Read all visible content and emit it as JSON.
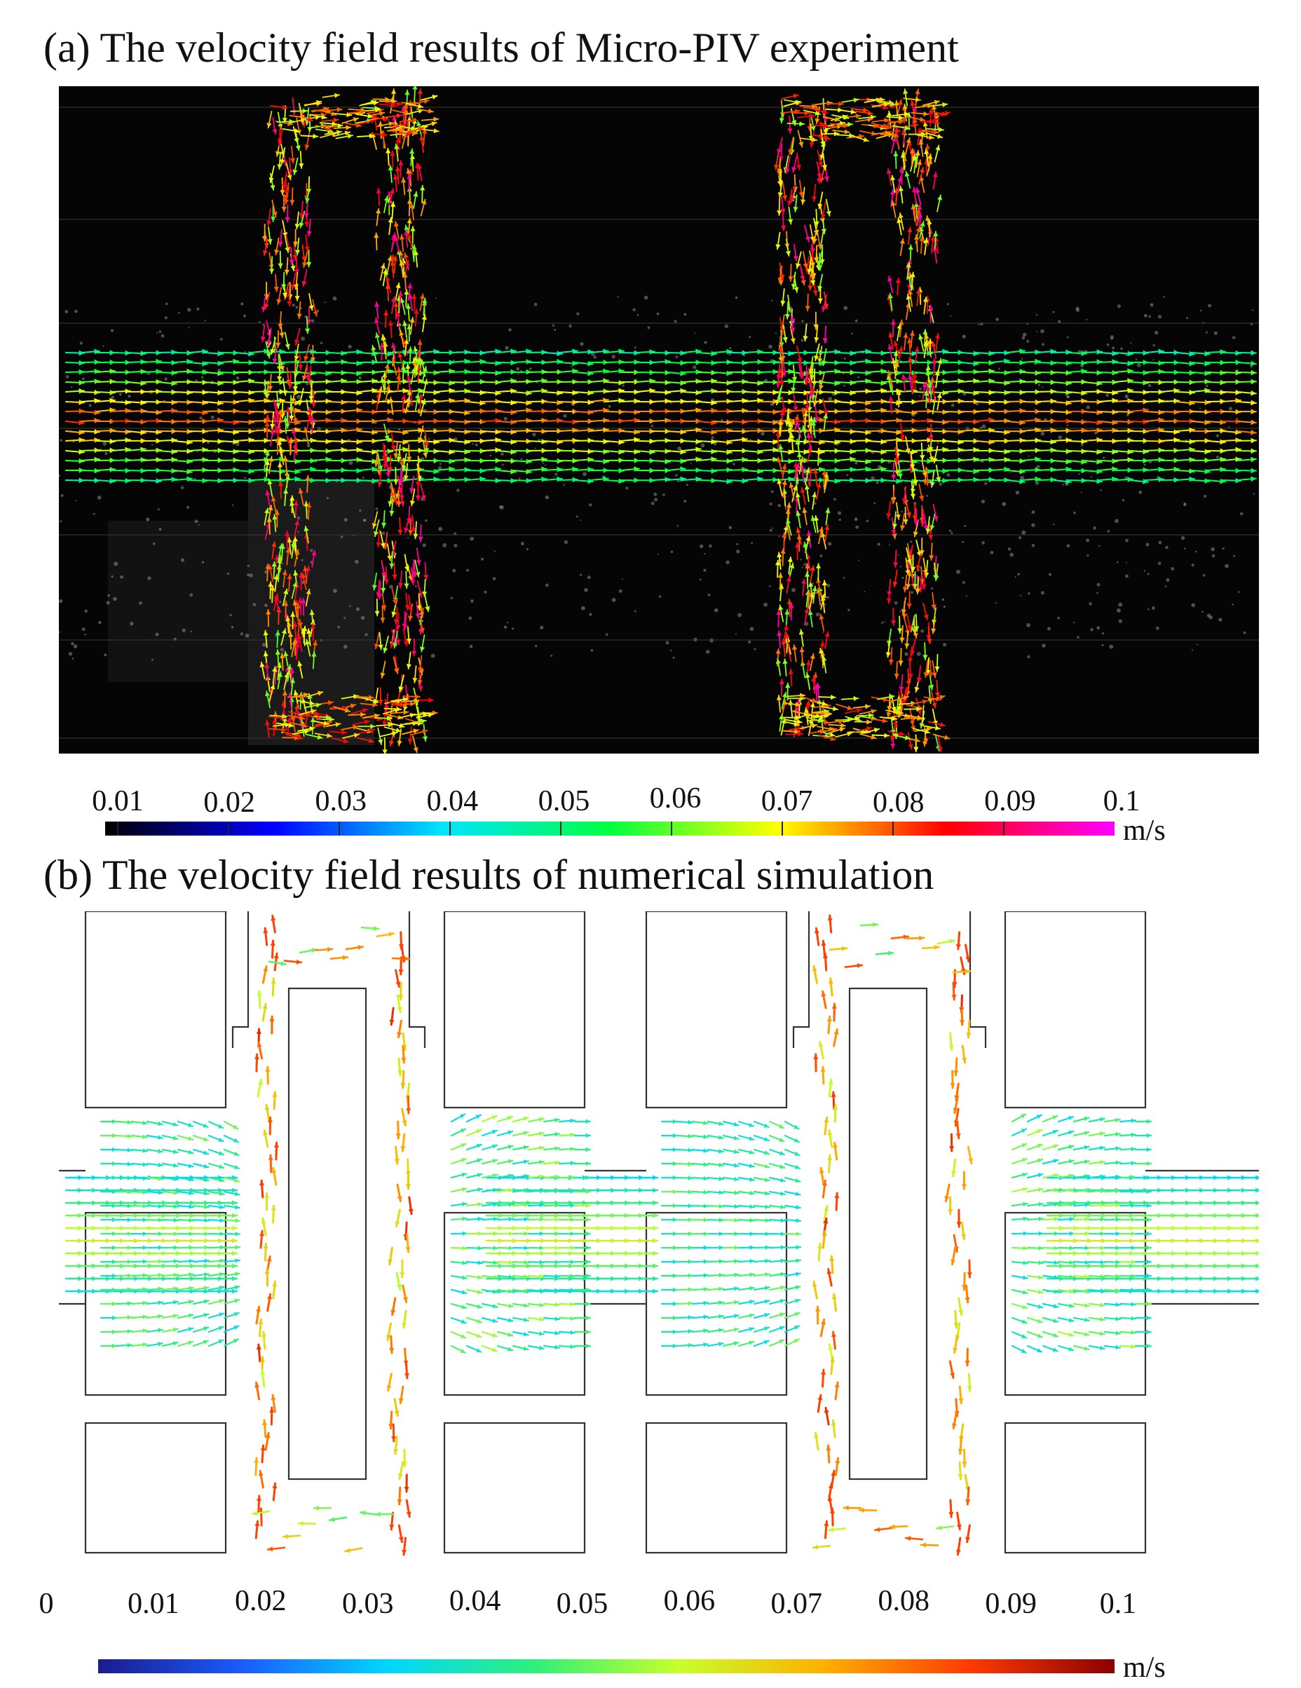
{
  "panel_a": {
    "title": "(a) The velocity field results of Micro-PIV experiment",
    "colorbar": {
      "ticks": [
        "0.01",
        "0.02",
        "0.03",
        "0.04",
        "0.05",
        "0.06",
        "0.07",
        "0.08",
        "0.09",
        "0.1"
      ],
      "unit": "m/s",
      "colors": [
        "#000000",
        "#0000ff",
        "#00e5ff",
        "#00ff40",
        "#ffff00",
        "#ff0000",
        "#ff00ff"
      ]
    }
  },
  "panel_b": {
    "title": "(b) The velocity field results of numerical simulation",
    "colorbar": {
      "ticks": [
        "0",
        "0.01",
        "0.02",
        "0.03",
        "0.04",
        "0.05",
        "0.06",
        "0.07",
        "0.08",
        "0.09",
        "0.1"
      ],
      "unit": "m/s",
      "colors": [
        "#1b1b8f",
        "#1a5cff",
        "#00d7ff",
        "#2df07a",
        "#c8ff2a",
        "#ffb000",
        "#ff3a00",
        "#8b0000"
      ]
    }
  }
}
